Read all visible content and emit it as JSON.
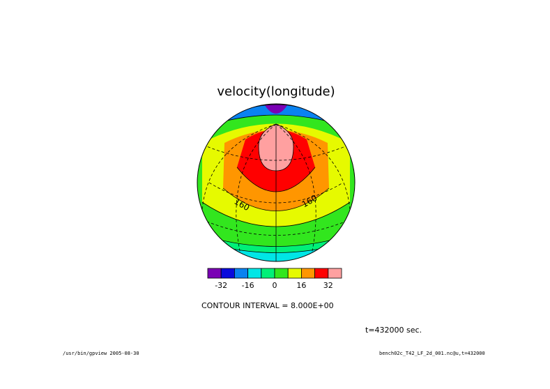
{
  "chart_data": {
    "type": "heatmap",
    "title": "velocity(longitude)",
    "projection": "orthographic",
    "contour_labels": [
      "160",
      "160"
    ],
    "colorbar": {
      "colors": [
        "#7a00b4",
        "#0a0adc",
        "#0a82f0",
        "#00e6e6",
        "#00f078",
        "#32e61e",
        "#e6fa00",
        "#ff9600",
        "#ff0000",
        "#ffa0a0"
      ],
      "tick_labels": [
        "-32",
        "-16",
        "0",
        "16",
        "32"
      ],
      "tick_values": [
        -32,
        -16,
        0,
        16,
        32
      ],
      "min": -40,
      "max": 40
    },
    "contour_interval_text": "CONTOUR INTERVAL = 8.000E+00",
    "time_text": "t=432000 sec."
  },
  "footer": {
    "left": "/usr/bin/gpview  2005-08-30",
    "right": "bench02c_T42_LF_2d_001.nc@u,t=432000"
  }
}
